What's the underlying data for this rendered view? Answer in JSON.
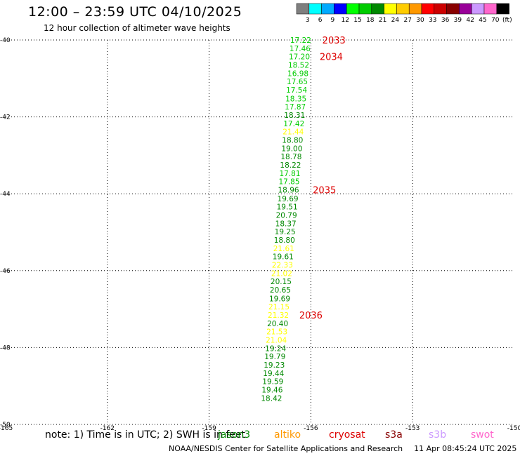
{
  "header": {
    "title": "12:00 – 23:59 UTC 04/10/2025",
    "subtitle": "12 hour collection of altimeter wave heights"
  },
  "legend": {
    "unit": "(ft)",
    "bins": [
      {
        "label": "3",
        "color": "#7f7f7f"
      },
      {
        "label": "6",
        "color": "#00ffff"
      },
      {
        "label": "9",
        "color": "#00aaff"
      },
      {
        "label": "12",
        "color": "#0000ff"
      },
      {
        "label": "15",
        "color": "#00ff00"
      },
      {
        "label": "18",
        "color": "#00cc00"
      },
      {
        "label": "21",
        "color": "#008800"
      },
      {
        "label": "24",
        "color": "#ffff00"
      },
      {
        "label": "27",
        "color": "#ffcc00"
      },
      {
        "label": "30",
        "color": "#ff9900"
      },
      {
        "label": "33",
        "color": "#ff0000"
      },
      {
        "label": "36",
        "color": "#cc0000"
      },
      {
        "label": "39",
        "color": "#880000"
      },
      {
        "label": "42",
        "color": "#990099"
      },
      {
        "label": "45",
        "color": "#cc99ff"
      },
      {
        "label": "70",
        "color": "#ff66cc"
      },
      {
        "label": "",
        "color": "#000000"
      }
    ]
  },
  "chart_data": {
    "type": "scatter",
    "title": "12:00 – 23:59 UTC 04/10/2025",
    "subtitle": "12 hour collection of altimeter wave heights",
    "xlim": [
      -165,
      -150
    ],
    "ylim": [
      -50,
      -40
    ],
    "x_ticks": [
      {
        "value": -165,
        "label": "-165"
      },
      {
        "value": -162,
        "label": "-162"
      },
      {
        "value": -159,
        "label": "-159"
      },
      {
        "value": -156,
        "label": "-156"
      },
      {
        "value": -153,
        "label": "-153"
      },
      {
        "value": -150,
        "label": "-150"
      }
    ],
    "y_ticks": [
      {
        "value": -40,
        "label": "-40"
      },
      {
        "value": -42,
        "label": "-42"
      },
      {
        "value": -44,
        "label": "-44"
      },
      {
        "value": -46,
        "label": "-46"
      },
      {
        "value": -48,
        "label": "-48"
      },
      {
        "value": -50,
        "label": "-50"
      }
    ],
    "grid": true,
    "points": [
      {
        "lon": -156.3,
        "lat": -40.0,
        "value": "17.22",
        "color": "#00cc00"
      },
      {
        "lon": -156.32,
        "lat": -40.22,
        "value": "17.46",
        "color": "#00cc00"
      },
      {
        "lon": -156.34,
        "lat": -40.43,
        "value": "17.20",
        "color": "#00cc00"
      },
      {
        "lon": -156.36,
        "lat": -40.65,
        "value": "18.52",
        "color": "#00cc00"
      },
      {
        "lon": -156.38,
        "lat": -40.87,
        "value": "16.98",
        "color": "#00cc00"
      },
      {
        "lon": -156.4,
        "lat": -41.08,
        "value": "17.65",
        "color": "#00cc00"
      },
      {
        "lon": -156.42,
        "lat": -41.3,
        "value": "17.54",
        "color": "#00cc00"
      },
      {
        "lon": -156.44,
        "lat": -41.52,
        "value": "18.35",
        "color": "#00cc00"
      },
      {
        "lon": -156.46,
        "lat": -41.73,
        "value": "17.87",
        "color": "#00cc00"
      },
      {
        "lon": -156.48,
        "lat": -41.95,
        "value": "18.31",
        "color": "#008800"
      },
      {
        "lon": -156.5,
        "lat": -42.17,
        "value": "17.42",
        "color": "#00cc00"
      },
      {
        "lon": -156.52,
        "lat": -42.38,
        "value": "21.44",
        "color": "#ffff00"
      },
      {
        "lon": -156.54,
        "lat": -42.6,
        "value": "18.80",
        "color": "#008800"
      },
      {
        "lon": -156.56,
        "lat": -42.82,
        "value": "19.00",
        "color": "#008800"
      },
      {
        "lon": -156.58,
        "lat": -43.03,
        "value": "18.78",
        "color": "#008800"
      },
      {
        "lon": -156.6,
        "lat": -43.25,
        "value": "18.22",
        "color": "#008800"
      },
      {
        "lon": -156.62,
        "lat": -43.47,
        "value": "17.81",
        "color": "#00cc00"
      },
      {
        "lon": -156.64,
        "lat": -43.68,
        "value": "17.85",
        "color": "#00cc00"
      },
      {
        "lon": -156.66,
        "lat": -43.9,
        "value": "18.96",
        "color": "#008800"
      },
      {
        "lon": -156.68,
        "lat": -44.12,
        "value": "19.69",
        "color": "#008800"
      },
      {
        "lon": -156.7,
        "lat": -44.33,
        "value": "19.51",
        "color": "#008800"
      },
      {
        "lon": -156.72,
        "lat": -44.55,
        "value": "20.79",
        "color": "#008800"
      },
      {
        "lon": -156.74,
        "lat": -44.77,
        "value": "18.37",
        "color": "#008800"
      },
      {
        "lon": -156.76,
        "lat": -44.98,
        "value": "19.25",
        "color": "#008800"
      },
      {
        "lon": -156.78,
        "lat": -45.2,
        "value": "18.80",
        "color": "#008800"
      },
      {
        "lon": -156.8,
        "lat": -45.42,
        "value": "21.61",
        "color": "#ffff00"
      },
      {
        "lon": -156.82,
        "lat": -45.63,
        "value": "19.61",
        "color": "#008800"
      },
      {
        "lon": -156.84,
        "lat": -45.85,
        "value": "22.33",
        "color": "#ffff00"
      },
      {
        "lon": -156.86,
        "lat": -46.07,
        "value": "21.02",
        "color": "#ffff00"
      },
      {
        "lon": -156.88,
        "lat": -46.28,
        "value": "20.15",
        "color": "#008800"
      },
      {
        "lon": -156.9,
        "lat": -46.5,
        "value": "20.65",
        "color": "#008800"
      },
      {
        "lon": -156.92,
        "lat": -46.72,
        "value": "19.69",
        "color": "#008800"
      },
      {
        "lon": -156.94,
        "lat": -46.93,
        "value": "21.15",
        "color": "#ffff00"
      },
      {
        "lon": -156.96,
        "lat": -47.15,
        "value": "21.32",
        "color": "#ffff00"
      },
      {
        "lon": -156.98,
        "lat": -47.37,
        "value": "20.40",
        "color": "#008800"
      },
      {
        "lon": -157.0,
        "lat": -47.58,
        "value": "21.53",
        "color": "#ffff00"
      },
      {
        "lon": -157.02,
        "lat": -47.8,
        "value": "21.04",
        "color": "#ffff00"
      },
      {
        "lon": -157.04,
        "lat": -48.02,
        "value": "19.24",
        "color": "#008800"
      },
      {
        "lon": -157.06,
        "lat": -48.23,
        "value": "19.79",
        "color": "#008800"
      },
      {
        "lon": -157.08,
        "lat": -48.45,
        "value": "19.23",
        "color": "#008800"
      },
      {
        "lon": -157.1,
        "lat": -48.67,
        "value": "19.44",
        "color": "#008800"
      },
      {
        "lon": -157.12,
        "lat": -48.88,
        "value": "19.59",
        "color": "#008800"
      },
      {
        "lon": -157.14,
        "lat": -49.1,
        "value": "19.46",
        "color": "#008800"
      },
      {
        "lon": -157.16,
        "lat": -49.32,
        "value": "18.42",
        "color": "#008800"
      }
    ],
    "time_labels": [
      {
        "text": "2033",
        "lon": -155.32,
        "lat": -40.0,
        "color": "#dd0000"
      },
      {
        "text": "2034",
        "lon": -155.4,
        "lat": -40.43,
        "color": "#dd0000"
      },
      {
        "text": "2035",
        "lon": -155.6,
        "lat": -43.9,
        "color": "#dd0000"
      },
      {
        "text": "2036",
        "lon": -156.0,
        "lat": -47.15,
        "color": "#dd0000"
      }
    ]
  },
  "note": "note: 1) Time is in UTC; 2) SWH is in feet",
  "satellites": [
    {
      "name": "jason3",
      "color": "#008800"
    },
    {
      "name": "altiko",
      "color": "#ff9900"
    },
    {
      "name": "cryosat",
      "color": "#dd0000"
    },
    {
      "name": "s3a",
      "color": "#880000"
    },
    {
      "name": "s3b",
      "color": "#cc99ff"
    },
    {
      "name": "swot",
      "color": "#ff66cc"
    }
  ],
  "footer": {
    "credit": "NOAA/NESDIS Center for Satellite Applications and Research",
    "timestamp": "11 Apr 08:45:24 UTC 2025"
  }
}
